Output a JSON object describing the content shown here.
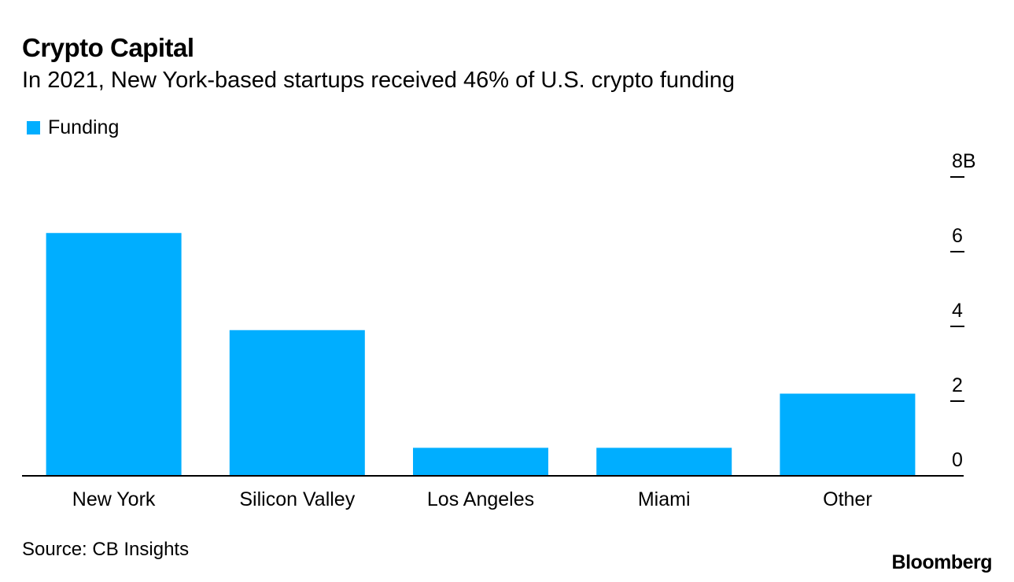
{
  "header": {
    "title": "Crypto Capital",
    "subtitle": "In 2021, New York-based startups received 46% of U.S. crypto funding"
  },
  "legend": {
    "label": "Funding"
  },
  "footer": {
    "source": "Source: CB Insights",
    "logo": "Bloomberg"
  },
  "colors": {
    "bar": "#00aeff",
    "axis": "#000000"
  },
  "chart_data": {
    "type": "bar",
    "title": "Crypto Capital",
    "subtitle": "In 2021, New York-based startups received 46% of U.S. crypto funding",
    "xlabel": "",
    "ylabel": "",
    "categories": [
      "New York",
      "Silicon Valley",
      "Los Angeles",
      "Miami",
      "Other"
    ],
    "series": [
      {
        "name": "Funding",
        "values": [
          6.5,
          3.9,
          0.75,
          0.75,
          2.2
        ]
      }
    ],
    "ylim": [
      0,
      8
    ],
    "yticks": [
      0,
      2,
      4,
      6,
      8
    ],
    "ytick_labels": [
      "0",
      "2",
      "4",
      "6",
      "8B"
    ],
    "y_axis_side": "right",
    "grid": false,
    "legend_position": "top-left"
  }
}
